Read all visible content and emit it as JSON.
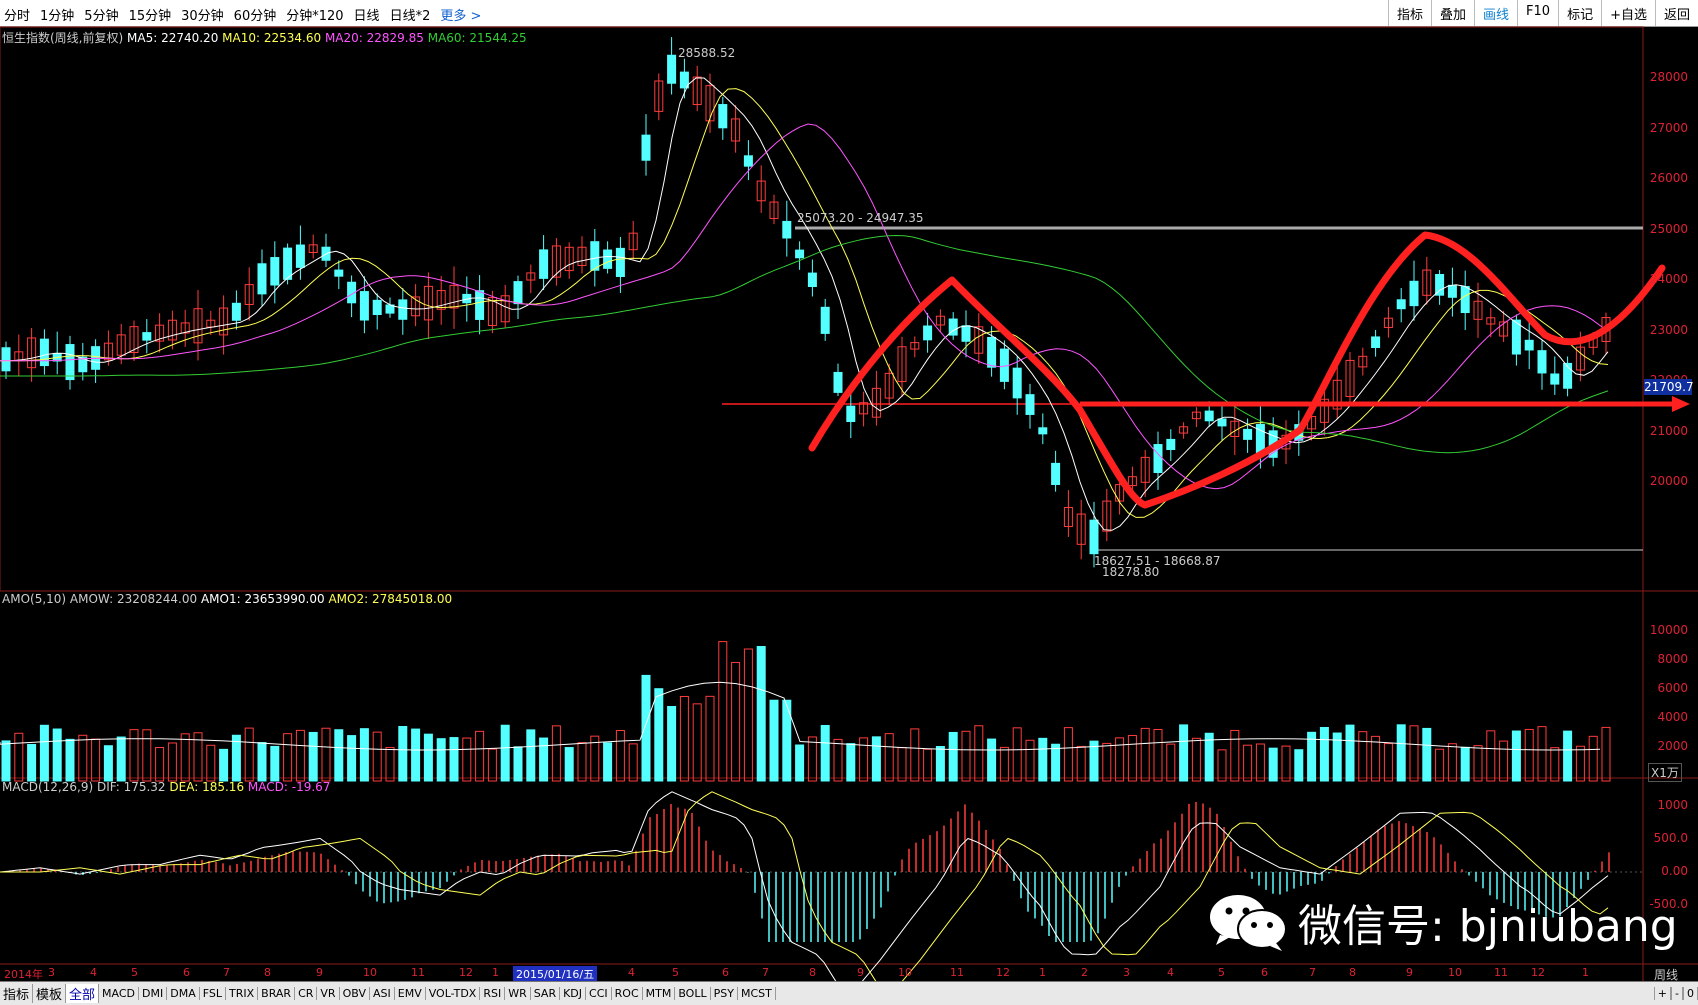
{
  "toolbar": {
    "left_items": [
      "分时",
      "1分钟",
      "5分钟",
      "15分钟",
      "30分钟",
      "60分钟",
      "分钟*120",
      "日线",
      "日线*2"
    ],
    "more_label": "更多 >",
    "right_items": [
      "指标",
      "叠加",
      "画线",
      "F10",
      "标记",
      "+自选",
      "返回"
    ]
  },
  "main_panel": {
    "title": "恒生指数(周线,前复权)",
    "ma5": "MA5: 22740.20",
    "ma10": "MA10: 22534.60",
    "ma20": "MA20: 22829.85",
    "ma60": "MA60: 21544.25",
    "y_ticks": [
      "28000",
      "27000",
      "26000",
      "25000",
      "24000",
      "23000",
      "22000",
      "21000",
      "20000"
    ],
    "high_label": "28588.52",
    "mid_label": "25073.20 - 24947.35",
    "low_label1": "18627.51 - 18668.87",
    "low_label2": "18278.80",
    "current_price": "21709.7"
  },
  "amo_panel": {
    "title": "AMO(5,10)",
    "amow": "AMOW: 23208244.00",
    "amo1": "AMO1: 23653990.00",
    "amo2": "AMO2: 27845018.00",
    "y_ticks": [
      "10000",
      "8000",
      "6000",
      "4000",
      "2000"
    ],
    "unit": "X1万"
  },
  "macd_panel": {
    "title": "MACD(12,26,9)",
    "dif": "DIF: 175.32",
    "dea": "DEA: 185.16",
    "macd": "MACD: -19.67",
    "y_ticks": [
      "1000",
      "500.0",
      "0.00",
      "-500.0"
    ]
  },
  "date_axis": {
    "year": "2014年",
    "labels": [
      "3",
      "4",
      "5",
      "6",
      "7",
      "8",
      "9",
      "10",
      "11",
      "12",
      "1",
      "2015/01/16/五",
      "4",
      "5",
      "6",
      "7",
      "8",
      "9",
      "10",
      "11",
      "12",
      "1",
      "2",
      "3",
      "4",
      "5",
      "6",
      "7",
      "8",
      "9",
      "10",
      "11",
      "12",
      "1"
    ],
    "period": "周线"
  },
  "bottom_tabs": [
    "指标",
    "模板",
    "全部",
    "MACD",
    "DMI",
    "DMA",
    "FSL",
    "TRIX",
    "BRAR",
    "CR",
    "VR",
    "OBV",
    "ASI",
    "EMV",
    "VOL-TDX",
    "RSI",
    "WR",
    "SAR",
    "KDJ",
    "CCI",
    "ROC",
    "MTM",
    "BOLL",
    "PSY",
    "MCST"
  ],
  "bottom_right": [
    "+",
    "-",
    "0"
  ],
  "watermark": "微信号: bjniubang",
  "colors": {
    "up": "#ff3c3c",
    "down": "#54ffff",
    "ma5": "#ffffff",
    "ma10": "#ffff55",
    "ma20": "#ff55ff",
    "ma60": "#33cc33",
    "annotation": "#ff2020"
  }
}
